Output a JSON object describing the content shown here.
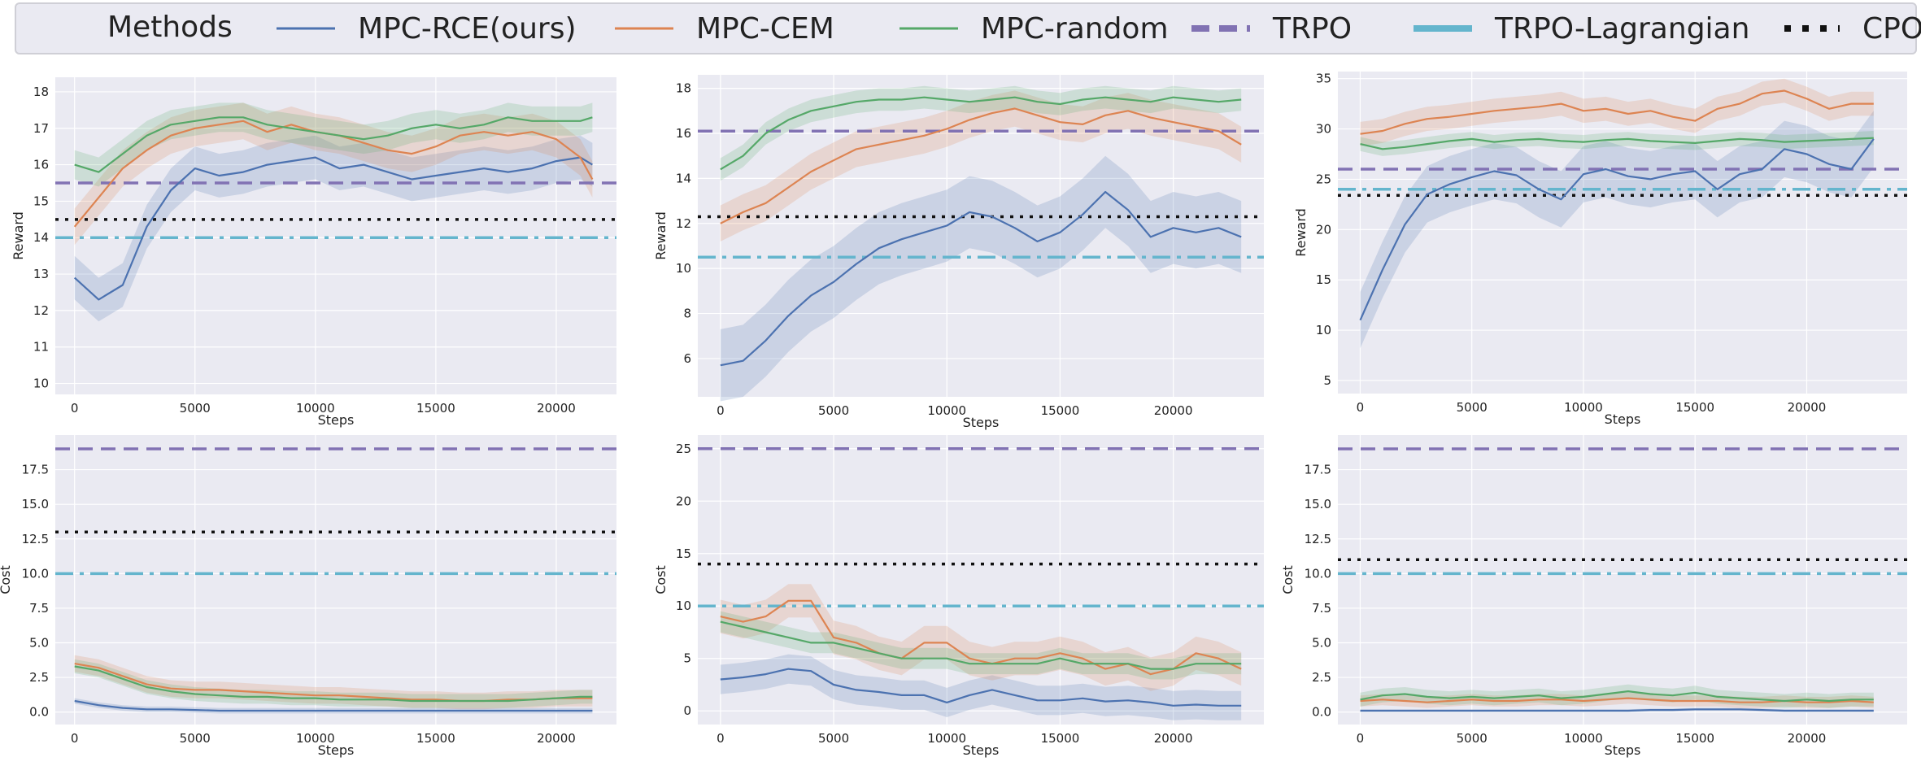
{
  "legend": {
    "title": "Methods",
    "items": [
      {
        "label": "MPC-RCE(ours)",
        "color": "#4c72b0",
        "style": "solid"
      },
      {
        "label": "MPC-CEM",
        "color": "#dd8452",
        "style": "solid"
      },
      {
        "label": "MPC-random",
        "color": "#55a868",
        "style": "solid"
      },
      {
        "label": "TRPO",
        "color": "#8172b3",
        "style": "dashed"
      },
      {
        "label": "TRPO-Lagrangian",
        "color": "#64b5cd",
        "style": "dashdot"
      },
      {
        "label": "CPO",
        "color": "#111111",
        "style": "dotted"
      }
    ]
  },
  "chart_data": [
    {
      "type": "line",
      "panel": "top-left",
      "xlabel": "Steps",
      "ylabel": "Reward",
      "xlim": [
        -800,
        22500
      ],
      "ylim": [
        9.7,
        18.4
      ],
      "xticks": [
        0,
        5000,
        10000,
        15000,
        20000
      ],
      "yticks": [
        10,
        11,
        12,
        13,
        14,
        15,
        16,
        17,
        18
      ],
      "x": [
        0,
        1000,
        2000,
        3000,
        4000,
        5000,
        6000,
        7000,
        8000,
        9000,
        10000,
        11000,
        12000,
        13000,
        14000,
        15000,
        16000,
        17000,
        18000,
        19000,
        20000,
        21000,
        21500
      ],
      "series": [
        {
          "name": "MPC-RCE(ours)",
          "values": [
            12.9,
            12.3,
            12.7,
            14.3,
            15.3,
            15.9,
            15.7,
            15.8,
            16.0,
            16.1,
            16.2,
            15.9,
            16.0,
            15.8,
            15.6,
            15.7,
            15.8,
            15.9,
            15.8,
            15.9,
            16.1,
            16.2,
            16.0
          ],
          "band": 0.6
        },
        {
          "name": "MPC-CEM",
          "values": [
            14.3,
            15.1,
            15.9,
            16.4,
            16.8,
            17.0,
            17.1,
            17.2,
            16.9,
            17.1,
            16.9,
            16.8,
            16.6,
            16.4,
            16.3,
            16.5,
            16.8,
            16.9,
            16.8,
            16.9,
            16.7,
            16.2,
            15.6
          ],
          "band": 0.5
        },
        {
          "name": "MPC-random",
          "values": [
            16.0,
            15.8,
            16.3,
            16.8,
            17.1,
            17.2,
            17.3,
            17.3,
            17.1,
            17.0,
            16.9,
            16.8,
            16.7,
            16.8,
            17.0,
            17.1,
            17.0,
            17.1,
            17.3,
            17.2,
            17.2,
            17.2,
            17.3
          ],
          "band": 0.4
        }
      ],
      "baselines": [
        {
          "name": "TRPO",
          "value": 15.5
        },
        {
          "name": "TRPO-Lagrangian",
          "value": 14.0
        },
        {
          "name": "CPO",
          "value": 14.5
        }
      ]
    },
    {
      "type": "line",
      "panel": "top-middle",
      "xlabel": "Steps",
      "ylabel": "Reward",
      "xlim": [
        -1000,
        24000
      ],
      "ylim": [
        4.3,
        18.6
      ],
      "xticks": [
        0,
        5000,
        10000,
        15000,
        20000
      ],
      "yticks": [
        6,
        8,
        10,
        12,
        14,
        16,
        18
      ],
      "x": [
        0,
        1000,
        2000,
        3000,
        4000,
        5000,
        6000,
        7000,
        8000,
        9000,
        10000,
        11000,
        12000,
        13000,
        14000,
        15000,
        16000,
        17000,
        18000,
        19000,
        20000,
        21000,
        22000,
        23000
      ],
      "series": [
        {
          "name": "MPC-RCE(ours)",
          "values": [
            5.7,
            5.9,
            6.8,
            7.9,
            8.8,
            9.4,
            10.2,
            10.9,
            11.3,
            11.6,
            11.9,
            12.5,
            12.3,
            11.8,
            11.2,
            11.6,
            12.4,
            13.4,
            12.6,
            11.4,
            11.8,
            11.6,
            11.8,
            11.4
          ],
          "band": 1.6
        },
        {
          "name": "MPC-CEM",
          "values": [
            12.0,
            12.5,
            12.9,
            13.6,
            14.3,
            14.8,
            15.3,
            15.5,
            15.7,
            15.9,
            16.2,
            16.6,
            16.9,
            17.1,
            16.8,
            16.5,
            16.4,
            16.8,
            17.0,
            16.7,
            16.5,
            16.3,
            16.1,
            15.5
          ],
          "band": 0.8
        },
        {
          "name": "MPC-random",
          "values": [
            14.4,
            15.0,
            16.0,
            16.6,
            17.0,
            17.2,
            17.4,
            17.5,
            17.5,
            17.6,
            17.5,
            17.4,
            17.5,
            17.6,
            17.4,
            17.3,
            17.5,
            17.6,
            17.5,
            17.4,
            17.6,
            17.5,
            17.4,
            17.5
          ],
          "band": 0.5
        }
      ],
      "baselines": [
        {
          "name": "TRPO",
          "value": 16.1
        },
        {
          "name": "TRPO-Lagrangian",
          "value": 10.5
        },
        {
          "name": "CPO",
          "value": 12.3
        }
      ]
    },
    {
      "type": "line",
      "panel": "top-right",
      "xlabel": "Steps",
      "ylabel": "Reward",
      "xlim": [
        -1000,
        24500
      ],
      "ylim": [
        3.7,
        35.7
      ],
      "xticks": [
        0,
        5000,
        10000,
        15000,
        20000
      ],
      "yticks": [
        5,
        10,
        15,
        20,
        25,
        30,
        35
      ],
      "x": [
        0,
        1000,
        2000,
        3000,
        4000,
        5000,
        6000,
        7000,
        8000,
        9000,
        10000,
        11000,
        12000,
        13000,
        14000,
        15000,
        16000,
        17000,
        18000,
        19000,
        20000,
        21000,
        22000,
        23000
      ],
      "series": [
        {
          "name": "MPC-RCE(ours)",
          "values": [
            11.0,
            16.0,
            20.5,
            23.5,
            24.5,
            25.2,
            25.8,
            25.4,
            24.0,
            23.0,
            25.5,
            26.0,
            25.3,
            25.0,
            25.5,
            25.8,
            24.0,
            25.5,
            26.0,
            28.0,
            27.5,
            26.5,
            26.0,
            29.0
          ],
          "band": 2.8
        },
        {
          "name": "MPC-CEM",
          "values": [
            29.5,
            29.8,
            30.5,
            31.0,
            31.2,
            31.5,
            31.8,
            32.0,
            32.2,
            32.5,
            31.8,
            32.0,
            31.5,
            31.8,
            31.2,
            30.8,
            32.0,
            32.5,
            33.5,
            33.8,
            33.0,
            32.0,
            32.5,
            32.5
          ],
          "band": 1.2
        },
        {
          "name": "MPC-random",
          "values": [
            28.5,
            28.0,
            28.2,
            28.5,
            28.8,
            29.0,
            28.7,
            28.9,
            29.0,
            28.8,
            28.7,
            28.9,
            29.0,
            28.8,
            28.7,
            28.6,
            28.8,
            29.0,
            28.9,
            28.7,
            28.8,
            28.9,
            29.0,
            29.1
          ],
          "band": 0.7
        }
      ],
      "baselines": [
        {
          "name": "TRPO",
          "value": 26.0
        },
        {
          "name": "TRPO-Lagrangian",
          "value": 24.0
        },
        {
          "name": "CPO",
          "value": 23.4
        }
      ]
    },
    {
      "type": "line",
      "panel": "bottom-left",
      "xlabel": "Steps",
      "ylabel": "Cost",
      "xlim": [
        -800,
        22500
      ],
      "ylim": [
        -0.9,
        20.0
      ],
      "xticks": [
        0,
        5000,
        10000,
        15000,
        20000
      ],
      "yticks": [
        0.0,
        2.5,
        5.0,
        7.5,
        10.0,
        12.5,
        15.0,
        17.5
      ],
      "ytick_labels": [
        "0.0",
        "2.5",
        "5.0",
        "7.5",
        "10.0",
        "12.5",
        "15.0",
        "17.5"
      ],
      "x": [
        0,
        1000,
        2000,
        3000,
        4000,
        5000,
        6000,
        7000,
        8000,
        9000,
        10000,
        11000,
        12000,
        13000,
        14000,
        15000,
        16000,
        17000,
        18000,
        19000,
        20000,
        21000,
        21500
      ],
      "series": [
        {
          "name": "MPC-RCE(ours)",
          "values": [
            0.8,
            0.5,
            0.3,
            0.2,
            0.2,
            0.15,
            0.1,
            0.1,
            0.1,
            0.1,
            0.1,
            0.1,
            0.1,
            0.1,
            0.1,
            0.1,
            0.1,
            0.1,
            0.1,
            0.1,
            0.1,
            0.1,
            0.1
          ],
          "band": 0.2
        },
        {
          "name": "MPC-CEM",
          "values": [
            3.5,
            3.2,
            2.6,
            2.0,
            1.7,
            1.6,
            1.6,
            1.5,
            1.4,
            1.3,
            1.2,
            1.2,
            1.1,
            1.0,
            0.9,
            0.9,
            0.8,
            0.8,
            0.9,
            0.9,
            1.0,
            1.0,
            1.0
          ],
          "band": 0.6
        },
        {
          "name": "MPC-random",
          "values": [
            3.3,
            3.0,
            2.4,
            1.8,
            1.5,
            1.3,
            1.2,
            1.1,
            1.1,
            1.0,
            1.0,
            0.9,
            0.9,
            0.9,
            0.8,
            0.8,
            0.8,
            0.8,
            0.8,
            0.9,
            1.0,
            1.1,
            1.1
          ],
          "band": 0.5
        }
      ],
      "baselines": [
        {
          "name": "TRPO",
          "value": 19.0
        },
        {
          "name": "TRPO-Lagrangian",
          "value": 10.0
        },
        {
          "name": "CPO",
          "value": 13.0
        }
      ]
    },
    {
      "type": "line",
      "panel": "bottom-middle",
      "xlabel": "Steps",
      "ylabel": "Cost",
      "xlim": [
        -1000,
        24000
      ],
      "ylim": [
        -1.3,
        26.3
      ],
      "xticks": [
        0,
        5000,
        10000,
        15000,
        20000
      ],
      "yticks": [
        0,
        5,
        10,
        15,
        20,
        25
      ],
      "x": [
        0,
        1000,
        2000,
        3000,
        4000,
        5000,
        6000,
        7000,
        8000,
        9000,
        10000,
        11000,
        12000,
        13000,
        14000,
        15000,
        16000,
        17000,
        18000,
        19000,
        20000,
        21000,
        22000,
        23000
      ],
      "series": [
        {
          "name": "MPC-RCE(ours)",
          "values": [
            3.0,
            3.2,
            3.5,
            4.0,
            3.8,
            2.5,
            2.0,
            1.8,
            1.5,
            1.5,
            0.8,
            1.5,
            2.0,
            1.5,
            1.0,
            1.0,
            1.2,
            0.9,
            1.0,
            0.8,
            0.5,
            0.6,
            0.5,
            0.5
          ],
          "band": 1.4
        },
        {
          "name": "MPC-CEM",
          "values": [
            9.0,
            8.5,
            9.0,
            10.5,
            10.5,
            7.0,
            6.5,
            5.5,
            5.0,
            6.5,
            6.5,
            5.0,
            4.5,
            5.0,
            5.0,
            5.5,
            5.0,
            4.0,
            4.5,
            3.5,
            4.0,
            5.5,
            5.0,
            4.0
          ],
          "band": 1.6
        },
        {
          "name": "MPC-random",
          "values": [
            8.5,
            8.0,
            7.5,
            7.0,
            6.5,
            6.5,
            6.0,
            5.5,
            5.0,
            5.0,
            5.0,
            4.5,
            4.5,
            4.5,
            4.5,
            5.0,
            4.5,
            4.5,
            4.5,
            4.0,
            4.0,
            4.5,
            4.5,
            4.5
          ],
          "band": 1.0
        }
      ],
      "baselines": [
        {
          "name": "TRPO",
          "value": 25.0
        },
        {
          "name": "TRPO-Lagrangian",
          "value": 10.0
        },
        {
          "name": "CPO",
          "value": 14.0
        }
      ]
    },
    {
      "type": "line",
      "panel": "bottom-right",
      "xlabel": "Steps",
      "ylabel": "Cost",
      "xlim": [
        -1000,
        24500
      ],
      "ylim": [
        -0.9,
        20.0
      ],
      "xticks": [
        0,
        5000,
        10000,
        15000,
        20000
      ],
      "yticks": [
        0.0,
        2.5,
        5.0,
        7.5,
        10.0,
        12.5,
        15.0,
        17.5
      ],
      "ytick_labels": [
        "0.0",
        "2.5",
        "5.0",
        "7.5",
        "10.0",
        "12.5",
        "15.0",
        "17.5"
      ],
      "x": [
        0,
        1000,
        2000,
        3000,
        4000,
        5000,
        6000,
        7000,
        8000,
        9000,
        10000,
        11000,
        12000,
        13000,
        14000,
        15000,
        16000,
        17000,
        18000,
        19000,
        20000,
        21000,
        22000,
        23000
      ],
      "series": [
        {
          "name": "MPC-RCE(ours)",
          "values": [
            0.1,
            0.1,
            0.1,
            0.1,
            0.1,
            0.1,
            0.1,
            0.1,
            0.1,
            0.1,
            0.1,
            0.1,
            0.1,
            0.15,
            0.15,
            0.2,
            0.2,
            0.2,
            0.15,
            0.1,
            0.1,
            0.1,
            0.1,
            0.1
          ],
          "band": 0.1
        },
        {
          "name": "MPC-CEM",
          "values": [
            0.8,
            0.9,
            0.8,
            0.7,
            0.8,
            0.9,
            0.8,
            0.8,
            0.9,
            0.9,
            0.8,
            0.9,
            1.0,
            0.9,
            0.8,
            0.8,
            0.8,
            0.7,
            0.7,
            0.8,
            0.7,
            0.7,
            0.8,
            0.7
          ],
          "band": 0.4
        },
        {
          "name": "MPC-random",
          "values": [
            0.9,
            1.2,
            1.3,
            1.1,
            1.0,
            1.1,
            1.0,
            1.1,
            1.2,
            1.0,
            1.1,
            1.3,
            1.5,
            1.3,
            1.2,
            1.4,
            1.1,
            1.0,
            0.9,
            0.8,
            0.9,
            0.8,
            0.9,
            0.9
          ],
          "band": 0.5
        }
      ],
      "baselines": [
        {
          "name": "TRPO",
          "value": 19.0
        },
        {
          "name": "TRPO-Lagrangian",
          "value": 10.0
        },
        {
          "name": "CPO",
          "value": 11.0
        }
      ]
    }
  ]
}
